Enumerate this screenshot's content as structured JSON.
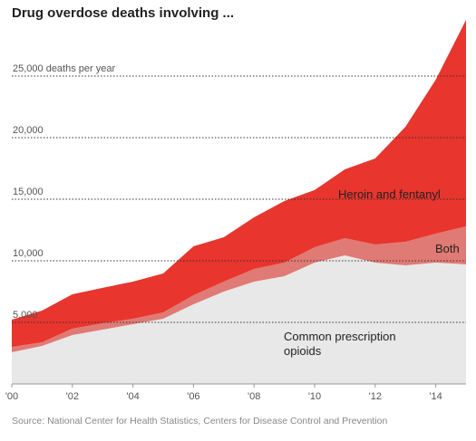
{
  "chart_data": {
    "type": "stacked_area",
    "title": "Drug overdose deaths involving ...",
    "source": "Source: National Center for Health Statistics, Centers for Disease Control and Prevention",
    "x": [
      2000,
      2001,
      2002,
      2003,
      2004,
      2005,
      2006,
      2007,
      2008,
      2009,
      2010,
      2011,
      2012,
      2013,
      2014,
      2015
    ],
    "series": [
      {
        "name": "Common prescription opioids",
        "color": "#e8e8e8",
        "values": [
          2570,
          3090,
          3970,
          4410,
          4850,
          5290,
          6470,
          7500,
          8310,
          8750,
          9850,
          10440,
          9850,
          9630,
          9850,
          9710
        ]
      },
      {
        "name": "Both",
        "color": "#e07a74",
        "values": [
          440,
          290,
          520,
          520,
          440,
          520,
          740,
          810,
          1030,
          1100,
          1250,
          1400,
          1470,
          1910,
          2360,
          3080
        ]
      },
      {
        "name": "Heroin and fentanyl",
        "color": "#e8352d",
        "values": [
          2210,
          2580,
          2790,
          2870,
          3020,
          3160,
          3970,
          3600,
          4190,
          5000,
          4640,
          5590,
          6990,
          9340,
          12500,
          16770
        ]
      }
    ],
    "xlim": [
      2000,
      2015
    ],
    "xticks": [
      {
        "value": 2000,
        "label": "'00"
      },
      {
        "value": 2002,
        "label": "'02"
      },
      {
        "value": 2004,
        "label": "'04"
      },
      {
        "value": 2006,
        "label": "'06"
      },
      {
        "value": 2008,
        "label": "'08"
      },
      {
        "value": 2010,
        "label": "'10"
      },
      {
        "value": 2012,
        "label": "'12"
      },
      {
        "value": 2014,
        "label": "'14"
      }
    ],
    "ylim": [
      0,
      30000
    ],
    "yticks": [
      {
        "value": 5000,
        "label": "5,000"
      },
      {
        "value": 10000,
        "label": "10,000"
      },
      {
        "value": 15000,
        "label": "15,000"
      },
      {
        "value": 20000,
        "label": "20,000"
      },
      {
        "value": 25000,
        "label": "25,000 deaths per year"
      }
    ],
    "grid": true
  }
}
